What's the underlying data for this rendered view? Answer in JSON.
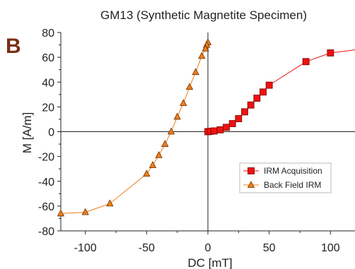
{
  "chart_data": {
    "type": "scatter",
    "title": "GM13 (Synthetic Magnetite Specimen)",
    "panel_label": "B",
    "xlabel": "DC [mT]",
    "ylabel": "M [A/m]",
    "xlim": [
      -120,
      120
    ],
    "ylim": [
      -80,
      80
    ],
    "xticks": [
      -100,
      -50,
      0,
      50,
      100
    ],
    "yticks": [
      80,
      60,
      40,
      20,
      0,
      -20,
      -40,
      -60,
      -80
    ],
    "legend_position": "lower-right",
    "series": [
      {
        "name": "IRM Acquisition",
        "color": "#ee1111",
        "marker": "square",
        "x": [
          0,
          2,
          5,
          10,
          15,
          20,
          25,
          30,
          35,
          40,
          45,
          50,
          80,
          100,
          120
        ],
        "y": [
          0,
          0.3,
          0.6,
          1.5,
          3.5,
          6.5,
          10.5,
          16,
          21.5,
          27,
          32,
          37.5,
          56.5,
          63.5,
          66
        ]
      },
      {
        "name": "Back Field IRM",
        "color": "#f07d1a",
        "marker": "triangle",
        "x": [
          0,
          -1,
          -2,
          -5,
          -10,
          -15,
          -20,
          -25,
          -30,
          -35,
          -40,
          -45,
          -50,
          -80,
          -100,
          -120
        ],
        "y": [
          72,
          70,
          67,
          61,
          48,
          36,
          23,
          12,
          0,
          -10,
          -19,
          -27,
          -34,
          -58,
          -65,
          -66
        ]
      }
    ]
  }
}
